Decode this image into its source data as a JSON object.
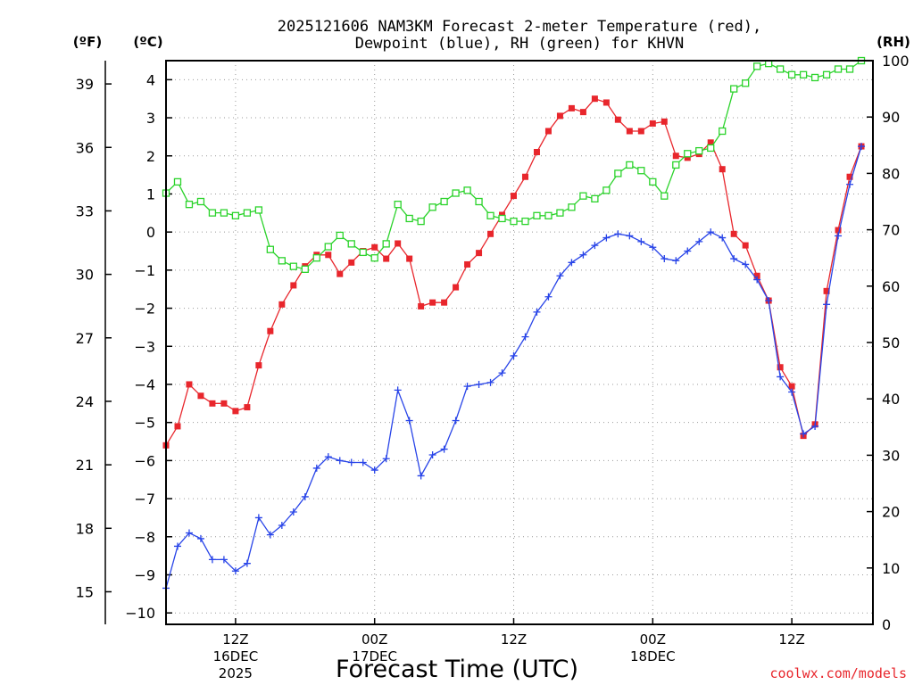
{
  "chart_data": {
    "type": "line",
    "title_line1": "2025121606 NAM3KM Forecast 2-meter Temperature (red),",
    "title_line2": "Dewpoint (blue), RH (green) for KHVN",
    "unit_f": "(ºF)",
    "unit_c": "(ºC)",
    "unit_rh": "(RH)",
    "xlabel": "Forecast Time (UTC)",
    "credit": "coolwx.com/models",
    "hours_start": 0,
    "hours_end": 61,
    "c_range": [
      -10.3,
      4.5
    ],
    "rh_range": [
      0,
      100
    ],
    "c_ticks": [
      -10,
      -9,
      -8,
      -7,
      -6,
      -5,
      -4,
      -3,
      -2,
      -1,
      0,
      1,
      2,
      3,
      4
    ],
    "c_tick_labels": [
      "−10",
      "−9",
      "−8",
      "−7",
      "−6",
      "−5",
      "−4",
      "−3",
      "−2",
      "−1",
      "0",
      "1",
      "2",
      "3",
      "4"
    ],
    "f_ticks": [
      15,
      18,
      21,
      24,
      27,
      30,
      33,
      36,
      39
    ],
    "f_tick_labels": [
      "15",
      "18",
      "21",
      "24",
      "27",
      "30",
      "33",
      "36",
      "39"
    ],
    "rh_ticks": [
      0,
      10,
      20,
      30,
      40,
      50,
      60,
      70,
      80,
      90,
      100
    ],
    "rh_tick_labels": [
      "0",
      "10",
      "20",
      "30",
      "40",
      "50",
      "60",
      "70",
      "80",
      "90",
      "100"
    ],
    "x_ticks": [
      {
        "hour": 6,
        "line1": "12Z",
        "line2": "16DEC",
        "line3": "2025"
      },
      {
        "hour": 18,
        "line1": "00Z",
        "line2": "17DEC",
        "line3": ""
      },
      {
        "hour": 30,
        "line1": "12Z",
        "line2": "",
        "line3": ""
      },
      {
        "hour": 42,
        "line1": "00Z",
        "line2": "18DEC",
        "line3": ""
      },
      {
        "hour": 54,
        "line1": "12Z",
        "line2": "",
        "line3": ""
      }
    ],
    "series": [
      {
        "name": "Temperature (°C)",
        "color": "#e8262c",
        "axis": "c",
        "marker": "square-filled",
        "values": [
          -5.6,
          -5.1,
          -4.0,
          -4.3,
          -4.5,
          -4.5,
          -4.7,
          -4.6,
          -3.5,
          -2.6,
          -1.9,
          -1.4,
          -0.9,
          -0.6,
          -0.6,
          -1.1,
          -0.8,
          -0.5,
          -0.4,
          -0.7,
          -0.3,
          -0.7,
          -1.95,
          -1.85,
          -1.85,
          -1.45,
          -0.85,
          -0.55,
          -0.05,
          0.45,
          0.95,
          1.45,
          2.1,
          2.65,
          3.05,
          3.25,
          3.15,
          3.5,
          3.4,
          2.95,
          2.65,
          2.65,
          2.85,
          2.9,
          2.0,
          1.95,
          2.05,
          2.35,
          1.65,
          -0.05,
          -0.35,
          -1.15,
          -1.8,
          -3.55,
          -4.05,
          -5.35,
          -5.05,
          -1.55,
          0.05,
          1.45,
          2.25
        ]
      },
      {
        "name": "Dewpoint (°C)",
        "color": "#2844e8",
        "axis": "c",
        "marker": "plus",
        "values": [
          -9.35,
          -8.25,
          -7.9,
          -8.05,
          -8.6,
          -8.6,
          -8.9,
          -8.7,
          -7.5,
          -7.95,
          -7.7,
          -7.35,
          -6.95,
          -6.2,
          -5.9,
          -6.0,
          -6.05,
          -6.05,
          -6.25,
          -5.95,
          -4.15,
          -4.95,
          -6.4,
          -5.85,
          -5.7,
          -4.95,
          -4.05,
          -4.0,
          -3.95,
          -3.7,
          -3.25,
          -2.75,
          -2.1,
          -1.7,
          -1.15,
          -0.8,
          -0.6,
          -0.35,
          -0.15,
          -0.05,
          -0.1,
          -0.25,
          -0.4,
          -0.7,
          -0.75,
          -0.5,
          -0.25,
          0.0,
          -0.15,
          -0.7,
          -0.85,
          -1.25,
          -1.8,
          -3.8,
          -4.2,
          -5.3,
          -5.1,
          -1.9,
          -0.1,
          1.25,
          2.25
        ]
      },
      {
        "name": "Relative Humidity (%)",
        "color": "#2bd32b",
        "axis": "rh",
        "marker": "square-open",
        "values": [
          76.5,
          78.5,
          74.5,
          75.0,
          73.0,
          73.0,
          72.5,
          73.0,
          73.5,
          66.5,
          64.5,
          63.5,
          63.0,
          65.0,
          67.0,
          69.0,
          67.5,
          66.0,
          65.0,
          67.5,
          74.5,
          72.0,
          71.5,
          74.0,
          75.0,
          76.5,
          77.0,
          75.0,
          72.5,
          72.0,
          71.5,
          71.5,
          72.5,
          72.5,
          73.0,
          74.0,
          76.0,
          75.5,
          77.0,
          80.0,
          81.5,
          80.5,
          78.5,
          76.0,
          81.5,
          83.5,
          84.0,
          84.5,
          87.5,
          95.0,
          96.0,
          99.0,
          99.5,
          98.5,
          97.5,
          97.5,
          97.0,
          97.5,
          98.5,
          98.5,
          100.0
        ]
      }
    ]
  }
}
